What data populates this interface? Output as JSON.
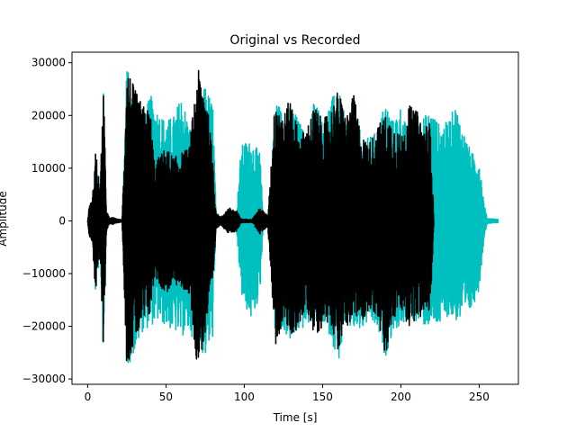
{
  "chart_data": {
    "type": "line",
    "title": "Original vs Recorded",
    "xlabel": "Time [s]",
    "ylabel": "Amplitude",
    "xlim": [
      -10,
      275
    ],
    "ylim": [
      -31000,
      32000
    ],
    "xticks": [
      0,
      50,
      100,
      150,
      200,
      250
    ],
    "xtick_labels": [
      "0",
      "50",
      "100",
      "150",
      "200",
      "250"
    ],
    "yticks": [
      -30000,
      -20000,
      -10000,
      0,
      10000,
      20000,
      30000
    ],
    "ytick_labels": [
      "−30000",
      "−20000",
      "−10000",
      "0",
      "10000",
      "20000",
      "30000"
    ],
    "grid": false,
    "legend": false,
    "series": [
      {
        "name": "Original",
        "color": "#00bfbf",
        "envelope": {
          "t": [
            0,
            1,
            3,
            5,
            8,
            10,
            12,
            14,
            16,
            18,
            20,
            22,
            25,
            30,
            35,
            40,
            45,
            50,
            55,
            60,
            65,
            70,
            75,
            80,
            82,
            85,
            90,
            95,
            98,
            100,
            105,
            110,
            112,
            116,
            118,
            120,
            125,
            130,
            135,
            140,
            145,
            150,
            155,
            160,
            165,
            170,
            175,
            180,
            185,
            190,
            195,
            200,
            205,
            210,
            215,
            220,
            225,
            230,
            235,
            240,
            245,
            250,
            253,
            255,
            262
          ],
          "pos": [
            0,
            3000,
            4000,
            12000,
            6000,
            26000,
            1500,
            500,
            700,
            400,
            300,
            200,
            30000,
            21000,
            19000,
            24000,
            21000,
            19000,
            20000,
            24000,
            18000,
            18000,
            26000,
            22000,
            1500,
            800,
            1500,
            1500,
            14000,
            15000,
            15000,
            13000,
            1500,
            700,
            15000,
            24000,
            20000,
            22000,
            19000,
            16000,
            24000,
            19000,
            23000,
            25000,
            19000,
            24000,
            15000,
            16000,
            17000,
            23000,
            19000,
            22000,
            16000,
            19000,
            20000,
            21000,
            18000,
            19000,
            22000,
            17000,
            13000,
            12000,
            3500,
            500,
            300
          ],
          "neg": [
            0,
            -3000,
            -4000,
            -14000,
            -6000,
            -26000,
            -1500,
            -500,
            -700,
            -400,
            -300,
            -200,
            -28000,
            -25000,
            -21000,
            -20000,
            -19000,
            -20000,
            -21000,
            -22000,
            -21000,
            -24000,
            -26000,
            -22000,
            -1500,
            -800,
            -1500,
            -1500,
            -14000,
            -16000,
            -19000,
            -14000,
            -1500,
            -700,
            -15000,
            -22000,
            -21000,
            -23000,
            -21000,
            -20000,
            -19000,
            -19000,
            -22000,
            -27000,
            -20000,
            -21000,
            -21000,
            -19000,
            -21000,
            -26000,
            -21000,
            -20000,
            -19000,
            -19000,
            -20000,
            -20000,
            -20000,
            -18000,
            -19000,
            -19000,
            -17000,
            -13000,
            -3500,
            -500,
            -300
          ]
        }
      },
      {
        "name": "Recorded",
        "color": "#000000",
        "envelope": {
          "t": [
            0,
            1,
            3,
            5,
            8,
            10,
            12,
            14,
            16,
            18,
            20,
            22,
            25,
            30,
            35,
            40,
            43,
            45,
            50,
            55,
            60,
            65,
            70,
            75,
            80,
            82,
            85,
            90,
            95,
            98,
            100,
            105,
            110,
            115,
            118,
            120,
            125,
            130,
            135,
            140,
            145,
            150,
            155,
            160,
            165,
            170,
            175,
            180,
            185,
            190,
            195,
            200,
            205,
            210,
            215,
            219,
            221
          ],
          "pos": [
            0,
            3000,
            4000,
            14000,
            6000,
            27000,
            2000,
            500,
            700,
            400,
            300,
            200,
            30000,
            25000,
            22000,
            21000,
            10000,
            12000,
            14000,
            12000,
            13000,
            14000,
            29000,
            26000,
            12000,
            1500,
            700,
            2500,
            2000,
            400,
            300,
            300,
            2500,
            1000,
            15000,
            25000,
            20000,
            24000,
            16000,
            18000,
            22000,
            19000,
            21000,
            25000,
            20000,
            24000,
            16000,
            15000,
            18000,
            20000,
            19000,
            16000,
            22000,
            21000,
            18000,
            19000,
            500
          ],
          "neg": [
            0,
            -3000,
            -4000,
            -14000,
            -6000,
            -27000,
            -2000,
            -500,
            -700,
            -400,
            -300,
            -200,
            -28000,
            -23000,
            -20000,
            -18000,
            -10000,
            -12000,
            -14000,
            -12000,
            -13000,
            -14000,
            -28000,
            -22000,
            -12000,
            -1500,
            -700,
            -2500,
            -2000,
            -400,
            -300,
            -300,
            -2500,
            -1000,
            -15000,
            -24000,
            -19000,
            -22000,
            -20000,
            -17000,
            -22000,
            -20000,
            -19000,
            -25000,
            -20000,
            -19000,
            -19000,
            -17000,
            -18000,
            -27000,
            -19000,
            -17000,
            -20000,
            -19000,
            -18000,
            -17000,
            -500
          ]
        }
      }
    ]
  }
}
